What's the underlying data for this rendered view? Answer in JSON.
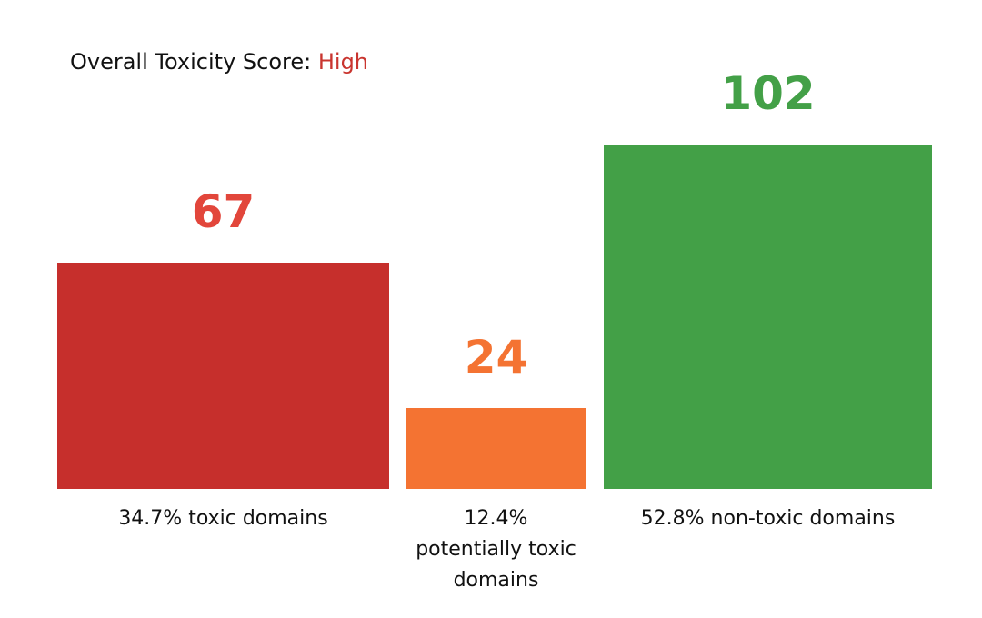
{
  "chart_data": {
    "type": "bar",
    "title": "Overall Toxicity Score:",
    "title_value": "High",
    "title_value_color": "#c9352f",
    "categories": [
      "34.7% toxic domains",
      "12.4% potentially toxic domains",
      "52.8% non-toxic domains"
    ],
    "values": [
      67,
      24,
      102
    ],
    "colors": [
      "#c62f2c",
      "#f47332",
      "#43a047"
    ],
    "label_colors": [
      "#e2463b",
      "#f47332",
      "#43a047"
    ]
  }
}
